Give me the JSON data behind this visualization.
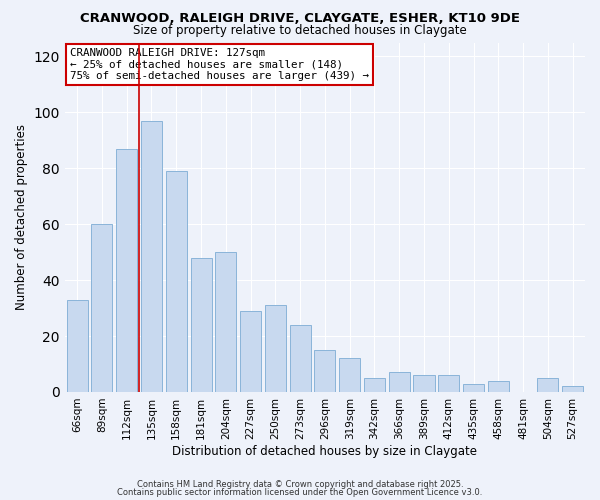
{
  "title": "CRANWOOD, RALEIGH DRIVE, CLAYGATE, ESHER, KT10 9DE",
  "subtitle": "Size of property relative to detached houses in Claygate",
  "xlabel": "Distribution of detached houses by size in Claygate",
  "ylabel": "Number of detached properties",
  "bar_color": "#c8d9ef",
  "bar_edge_color": "#8ab4d9",
  "categories": [
    "66sqm",
    "89sqm",
    "112sqm",
    "135sqm",
    "158sqm",
    "181sqm",
    "204sqm",
    "227sqm",
    "250sqm",
    "273sqm",
    "296sqm",
    "319sqm",
    "342sqm",
    "366sqm",
    "389sqm",
    "412sqm",
    "435sqm",
    "458sqm",
    "481sqm",
    "504sqm",
    "527sqm"
  ],
  "values": [
    33,
    60,
    87,
    97,
    79,
    48,
    50,
    29,
    31,
    24,
    15,
    12,
    5,
    7,
    6,
    6,
    3,
    4,
    0,
    5,
    2
  ],
  "ylim": [
    0,
    125
  ],
  "yticks": [
    0,
    20,
    40,
    60,
    80,
    100,
    120
  ],
  "vline_pos": 2.5,
  "vline_color": "#cc0000",
  "annotation_title": "CRANWOOD RALEIGH DRIVE: 127sqm",
  "annotation_line1": "← 25% of detached houses are smaller (148)",
  "annotation_line2": "75% of semi-detached houses are larger (439) →",
  "annotation_box_color": "#ffffff",
  "annotation_box_edge": "#cc0000",
  "background_color": "#eef2fa",
  "footer1": "Contains HM Land Registry data © Crown copyright and database right 2025.",
  "footer2": "Contains public sector information licensed under the Open Government Licence v3.0."
}
